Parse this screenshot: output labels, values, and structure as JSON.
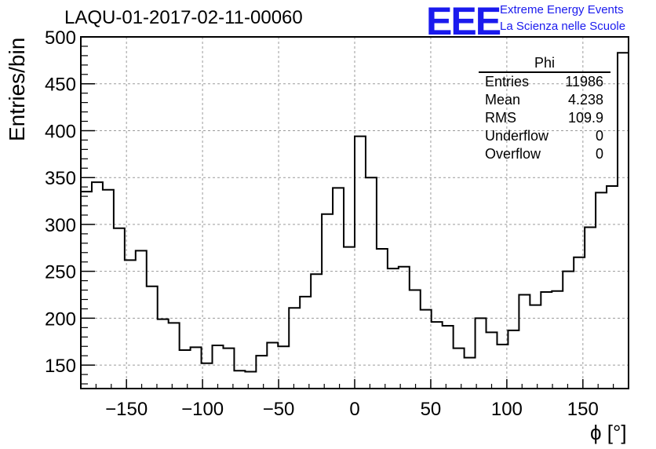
{
  "header": {
    "run_title": "LAQU-01-2017-02-11-00060",
    "logo_text": "EEE",
    "logo_line1": "Extreme Energy Events",
    "logo_line2": "La Scienza nelle Scuole"
  },
  "stats_box": {
    "title": "Phi",
    "rows": [
      {
        "label": "Entries",
        "value": "11986"
      },
      {
        "label": "Mean",
        "value": "4.238"
      },
      {
        "label": "RMS",
        "value": "109.9"
      },
      {
        "label": "Underflow",
        "value": "0"
      },
      {
        "label": "Overflow",
        "value": "0"
      }
    ]
  },
  "colors": {
    "logo_blue": "#1a1aee",
    "line": "#000000",
    "grid": "#9a9a9a"
  },
  "chart_data": {
    "type": "histogram",
    "title": "LAQU-01-2017-02-11-00060",
    "xlabel": "ϕ [°]",
    "ylabel": "Entries/bin",
    "xlim": [
      -180,
      180
    ],
    "ylim": [
      125,
      500
    ],
    "bin_width": 7.2,
    "x_ticks": [
      -150,
      -100,
      -50,
      0,
      50,
      100,
      150
    ],
    "x_tick_labels": [
      "−150",
      "−100",
      "−50",
      "0",
      "50",
      "100",
      "150"
    ],
    "y_ticks": [
      150,
      200,
      250,
      300,
      350,
      400,
      450,
      500
    ],
    "y_tick_labels": [
      "150",
      "200",
      "250",
      "300",
      "350",
      "400",
      "450",
      "500"
    ],
    "grid": true,
    "legend": "top-right",
    "values": [
      335,
      345,
      337,
      296,
      262,
      272,
      234,
      199,
      195,
      166,
      169,
      152,
      171,
      168,
      144,
      143,
      160,
      174,
      170,
      211,
      223,
      247,
      311,
      339,
      276,
      394,
      350,
      274,
      253,
      255,
      230,
      209,
      196,
      192,
      168,
      158,
      200,
      185,
      172,
      187,
      225,
      214,
      228,
      229,
      250,
      265,
      297,
      334,
      341,
      483
    ]
  }
}
